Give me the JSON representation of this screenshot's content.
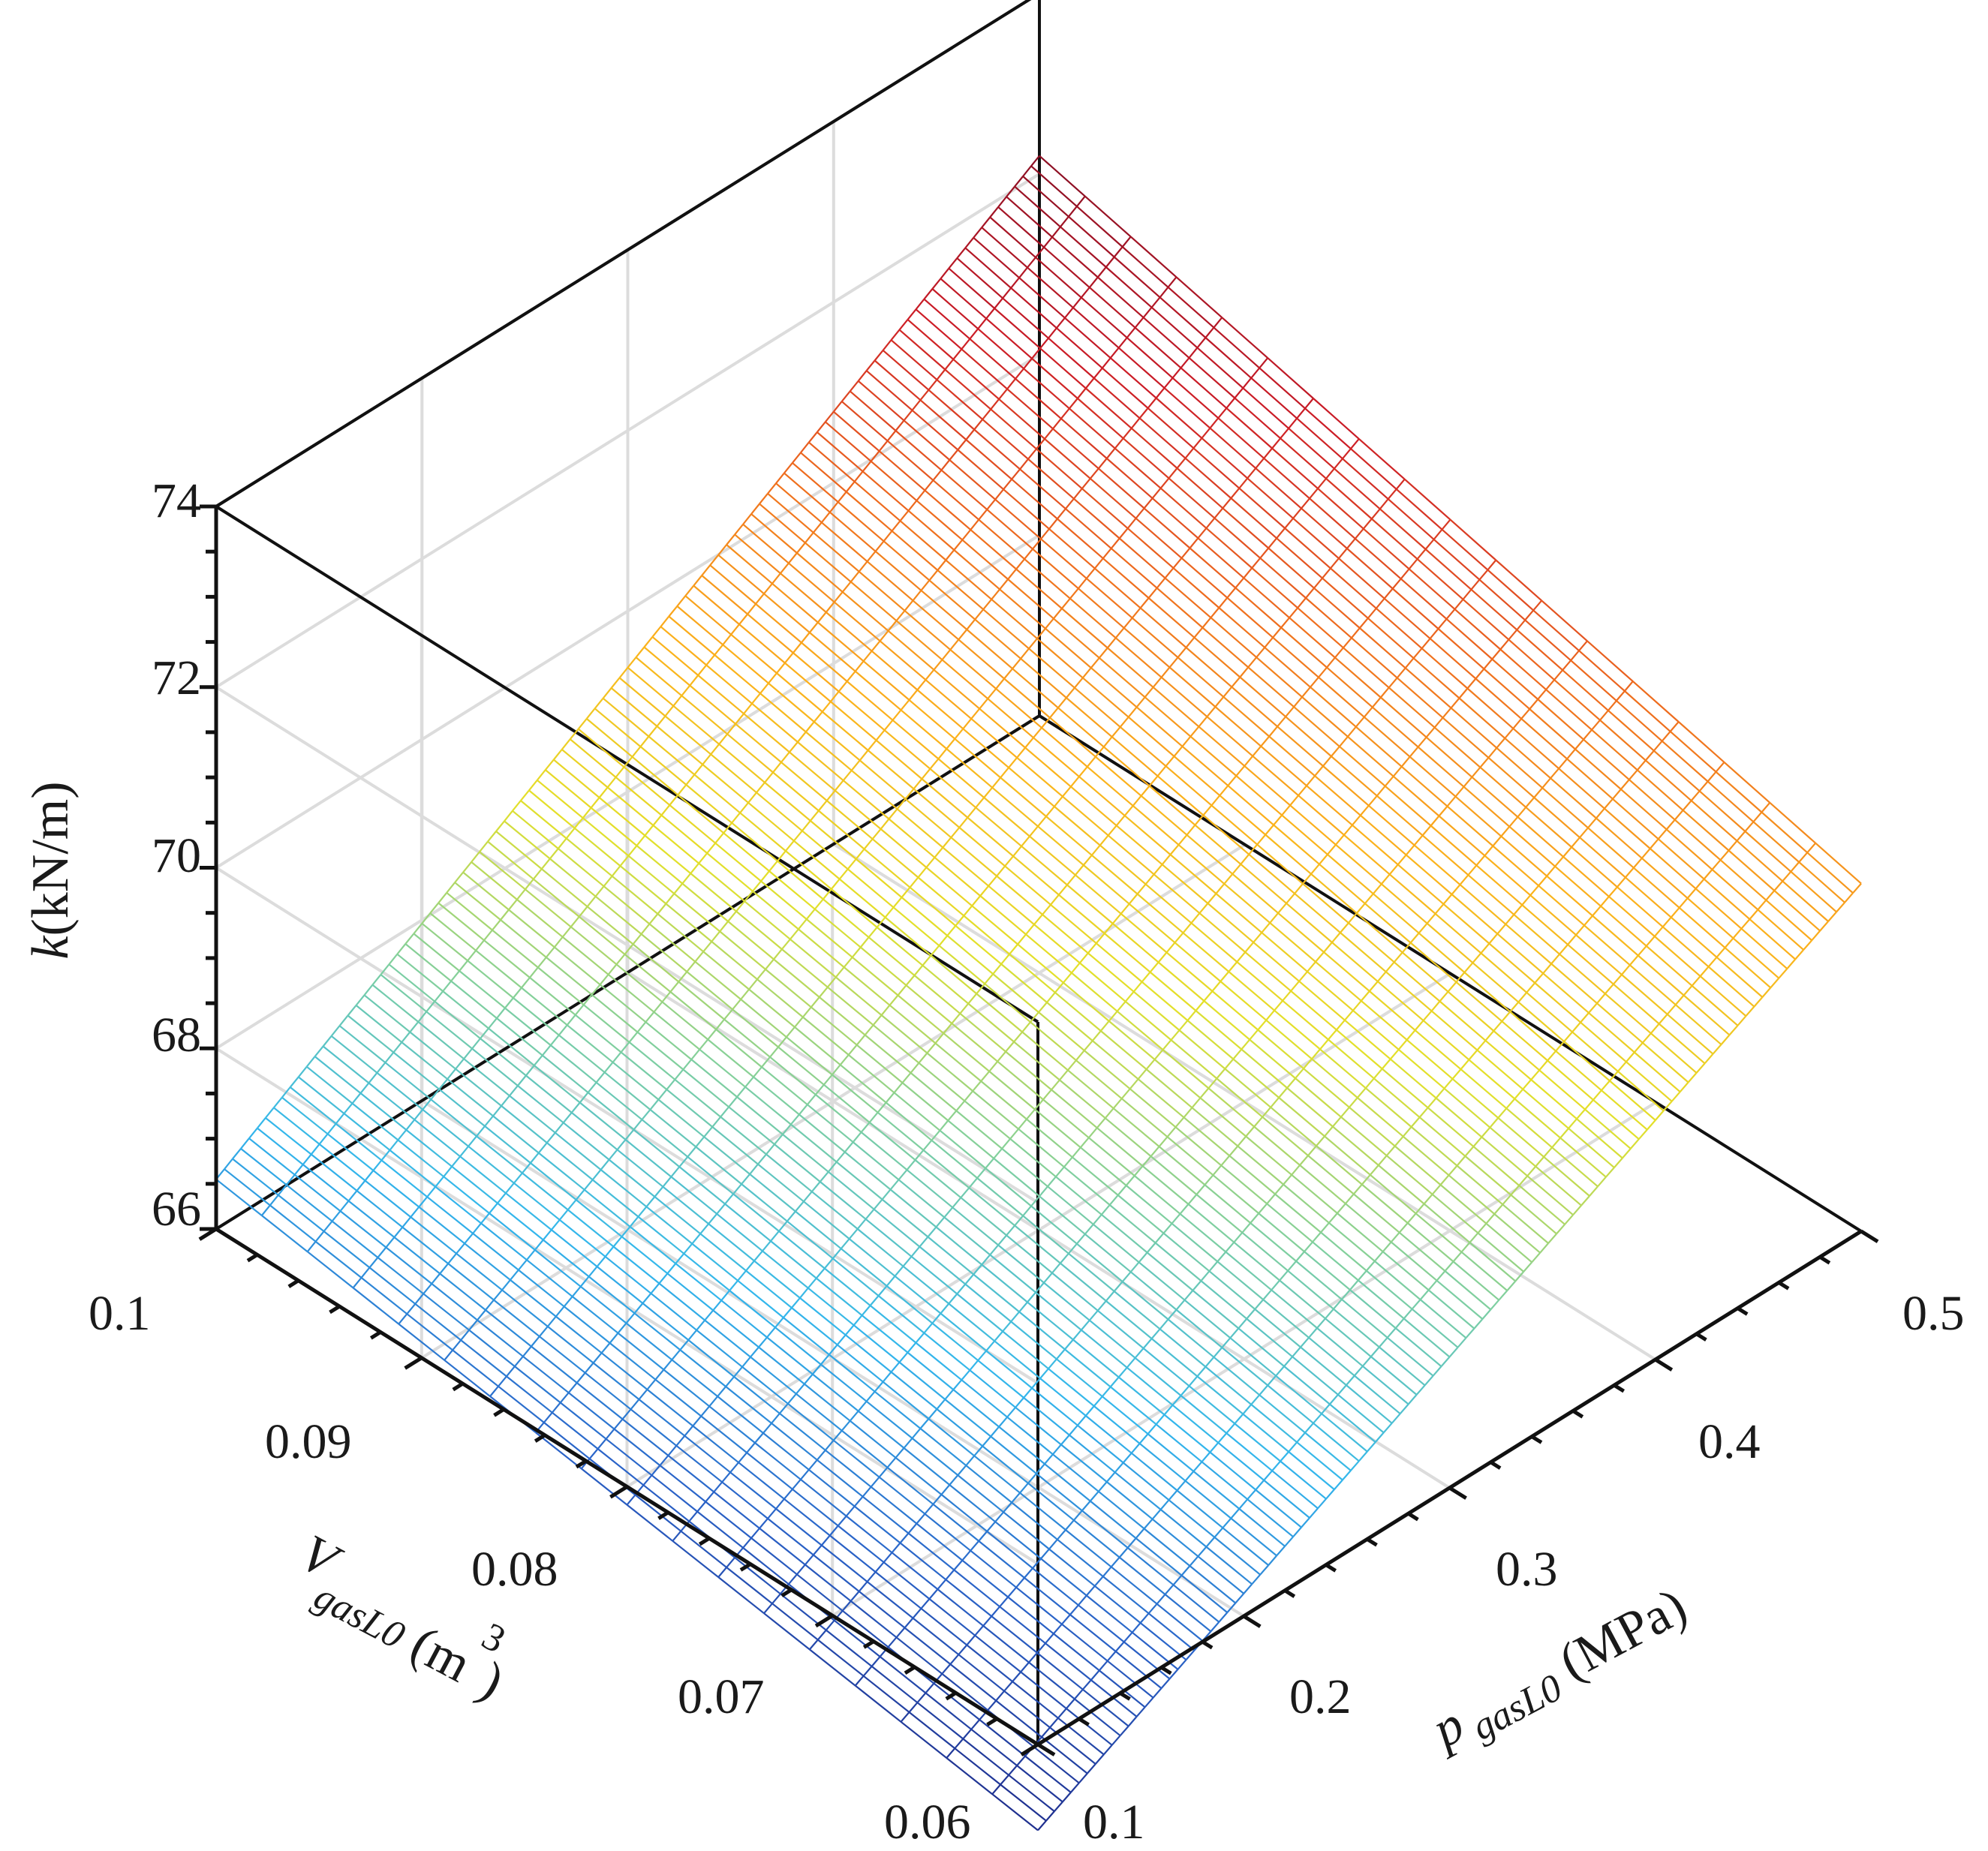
{
  "chart_data": {
    "type": "surface",
    "x_axis": {
      "name": "V",
      "subscript": "gasL0",
      "unit_open": " (m",
      "unit_sup": "3",
      "unit_close": ")",
      "range": [
        0.06,
        0.1
      ],
      "ticks": [
        "0.06",
        "0.07",
        "0.08",
        "0.09",
        "0.1"
      ]
    },
    "y_axis": {
      "name": "p",
      "subscript": "gasL0",
      "unit": " (MPa)",
      "range": [
        0.1,
        0.5
      ],
      "ticks": [
        "0.1",
        "0.2",
        "0.3",
        "0.4",
        "0.5"
      ]
    },
    "z_axis": {
      "name": "k",
      "unit": "(kN/m)",
      "range": [
        66,
        74
      ],
      "ticks": [
        "66",
        "68",
        "70",
        "72",
        "74"
      ]
    },
    "surface": {
      "grid_v_count": 19,
      "grid_p_count": 101,
      "corner_values": {
        "v_0.06_p_0.1": 65.05,
        "v_0.06_p_0.5": 69.85,
        "v_0.1_p_0.1": 66.55,
        "v_0.1_p_0.5": 72.2
      },
      "colormap": [
        "#1e2d8c",
        "#2a63c8",
        "#33b7ec",
        "#7fcfa0",
        "#e3e02a",
        "#fbb21c",
        "#ef6e1e",
        "#cc1c26",
        "#8a0f24"
      ]
    },
    "grid": true,
    "box": true
  }
}
